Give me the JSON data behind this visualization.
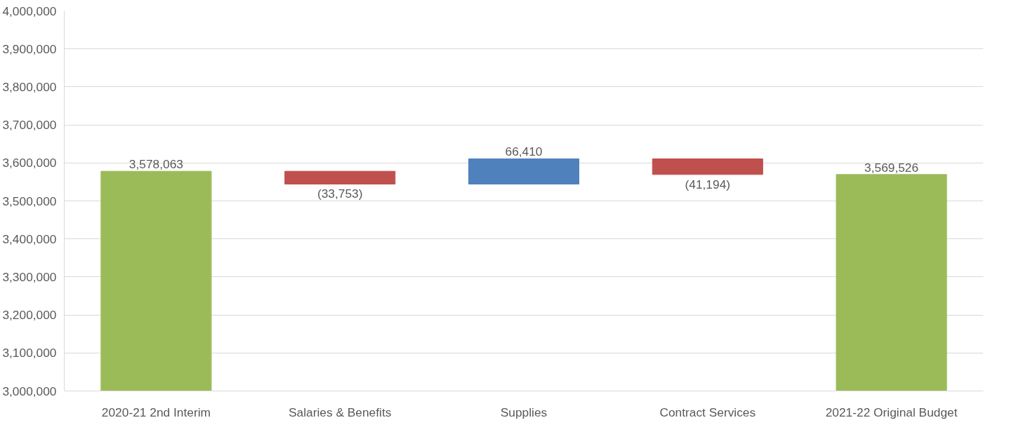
{
  "chart_data": {
    "type": "bar",
    "categories": [
      "2020-21 2nd Interim",
      "Salaries & Benefits",
      "Supplies",
      "Contract Services",
      "2021-22 Original Budget"
    ],
    "base": [
      3000000,
      3578063,
      3544310,
      3610720,
      3000000
    ],
    "values": [
      578063,
      -33753,
      66410,
      -41194,
      569526
    ],
    "colors": [
      "#9bbb59",
      "#c0504d",
      "#4f81bd",
      "#c0504d",
      "#9bbb59"
    ],
    "value_labels": [
      "3,578,063",
      "(33,753)",
      "66,410",
      "(41,194)",
      "3,569,526"
    ],
    "ylim": [
      3000000,
      4000000
    ],
    "yticks": [
      {
        "value": 3000000,
        "label": "3,000,000"
      },
      {
        "value": 3100000,
        "label": "3,100,000"
      },
      {
        "value": 3200000,
        "label": "3,200,000"
      },
      {
        "value": 3300000,
        "label": "3,300,000"
      },
      {
        "value": 3400000,
        "label": "3,400,000"
      },
      {
        "value": 3500000,
        "label": "3,500,000"
      },
      {
        "value": 3600000,
        "label": "3,600,000"
      },
      {
        "value": 3700000,
        "label": "3,700,000"
      },
      {
        "value": 3800000,
        "label": "3,800,000"
      },
      {
        "value": 3900000,
        "label": "3,900,000"
      },
      {
        "value": 4000000,
        "label": "4,000,000"
      }
    ],
    "grid": "y"
  }
}
